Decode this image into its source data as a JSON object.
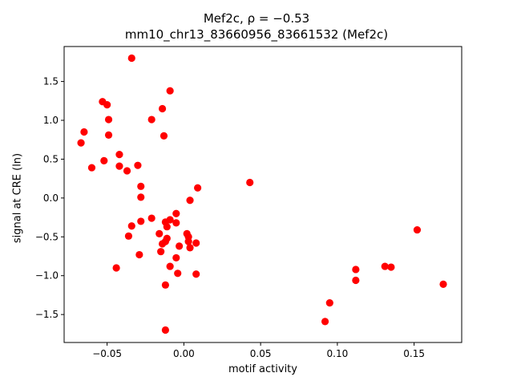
{
  "chart_data": {
    "type": "scatter",
    "title_line1": "Mef2c, ρ = −0.53",
    "title_line2": "mm10_chr13_83660956_83661532 (Mef2c)",
    "xlabel": "motif activity",
    "ylabel": "signal at CRE (ln)",
    "xlim": [
      -0.078,
      0.181
    ],
    "ylim": [
      -1.86,
      1.95
    ],
    "x_ticks": [
      -0.05,
      0.0,
      0.05,
      0.1,
      0.15
    ],
    "x_tick_labels": [
      "−0.05",
      "0.00",
      "0.05",
      "0.10",
      "0.15"
    ],
    "y_ticks": [
      -1.5,
      -1.0,
      -0.5,
      0.0,
      0.5,
      1.0,
      1.5
    ],
    "y_tick_labels": [
      "−1.5",
      "−1.0",
      "−0.5",
      "0.0",
      "0.5",
      "1.0",
      "1.5"
    ],
    "grid": false,
    "marker_color": "#ff0000",
    "points": [
      {
        "x": -0.034,
        "y": 1.8
      },
      {
        "x": -0.053,
        "y": 1.24
      },
      {
        "x": -0.05,
        "y": 1.2
      },
      {
        "x": -0.009,
        "y": 1.38
      },
      {
        "x": -0.014,
        "y": 1.15
      },
      {
        "x": -0.049,
        "y": 1.01
      },
      {
        "x": -0.021,
        "y": 1.01
      },
      {
        "x": -0.065,
        "y": 0.85
      },
      {
        "x": -0.049,
        "y": 0.81
      },
      {
        "x": -0.013,
        "y": 0.8
      },
      {
        "x": -0.067,
        "y": 0.71
      },
      {
        "x": -0.042,
        "y": 0.56
      },
      {
        "x": -0.052,
        "y": 0.48
      },
      {
        "x": -0.06,
        "y": 0.39
      },
      {
        "x": -0.042,
        "y": 0.41
      },
      {
        "x": -0.03,
        "y": 0.42
      },
      {
        "x": -0.037,
        "y": 0.35
      },
      {
        "x": -0.028,
        "y": 0.15
      },
      {
        "x": 0.009,
        "y": 0.13
      },
      {
        "x": 0.043,
        "y": 0.2
      },
      {
        "x": -0.028,
        "y": 0.01
      },
      {
        "x": 0.004,
        "y": -0.03
      },
      {
        "x": -0.005,
        "y": -0.2
      },
      {
        "x": -0.021,
        "y": -0.26
      },
      {
        "x": -0.028,
        "y": -0.3
      },
      {
        "x": -0.009,
        "y": -0.28
      },
      {
        "x": -0.012,
        "y": -0.31
      },
      {
        "x": -0.005,
        "y": -0.32
      },
      {
        "x": -0.034,
        "y": -0.36
      },
      {
        "x": -0.011,
        "y": -0.37
      },
      {
        "x": -0.016,
        "y": -0.46
      },
      {
        "x": -0.036,
        "y": -0.49
      },
      {
        "x": 0.002,
        "y": -0.46
      },
      {
        "x": 0.003,
        "y": -0.5
      },
      {
        "x": -0.011,
        "y": -0.52
      },
      {
        "x": -0.012,
        "y": -0.56
      },
      {
        "x": 0.003,
        "y": -0.56
      },
      {
        "x": -0.014,
        "y": -0.59
      },
      {
        "x": 0.008,
        "y": -0.58
      },
      {
        "x": -0.003,
        "y": -0.62
      },
      {
        "x": 0.004,
        "y": -0.64
      },
      {
        "x": -0.015,
        "y": -0.69
      },
      {
        "x": -0.029,
        "y": -0.73
      },
      {
        "x": -0.005,
        "y": -0.77
      },
      {
        "x": -0.009,
        "y": -0.88
      },
      {
        "x": -0.044,
        "y": -0.9
      },
      {
        "x": -0.004,
        "y": -0.97
      },
      {
        "x": 0.008,
        "y": -0.98
      },
      {
        "x": -0.012,
        "y": -1.12
      },
      {
        "x": -0.012,
        "y": -1.7
      },
      {
        "x": 0.112,
        "y": -0.92
      },
      {
        "x": 0.112,
        "y": -1.06
      },
      {
        "x": 0.131,
        "y": -0.88
      },
      {
        "x": 0.135,
        "y": -0.89
      },
      {
        "x": 0.152,
        "y": -0.41
      },
      {
        "x": 0.169,
        "y": -1.11
      },
      {
        "x": 0.095,
        "y": -1.35
      },
      {
        "x": 0.092,
        "y": -1.59
      }
    ]
  }
}
